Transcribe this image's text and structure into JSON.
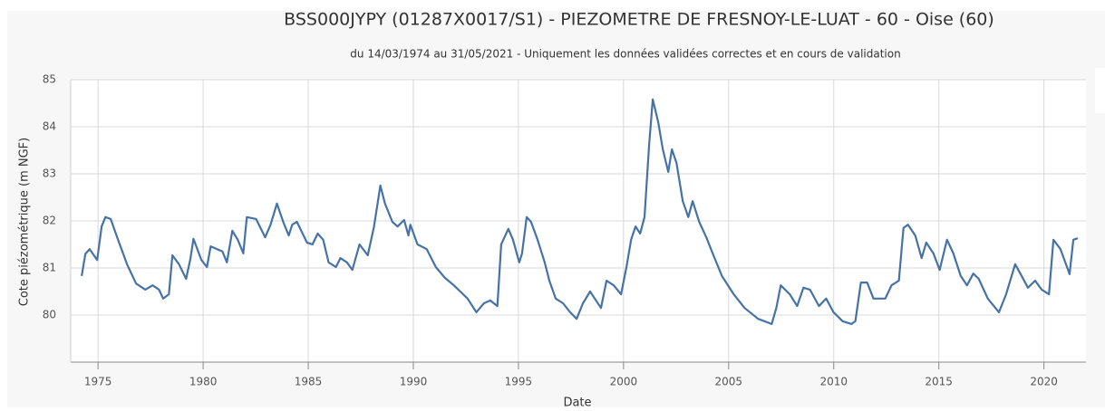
{
  "chart_data": {
    "type": "line",
    "title": "BSS000JYPY (01287X0017/S1) - PIEZOMETRE DE FRESNOY-LE-LUAT - 60 - Oise (60)",
    "subtitle": "du 14/03/1974 au 31/05/2021 - Uniquement les données validées correctes et en cours de validation",
    "xlabel": "Date",
    "ylabel": "Cote piézométrique (m NGF)",
    "xlim": [
      1973.7,
      2022.0
    ],
    "xticks": [
      1975,
      1980,
      1985,
      1990,
      1995,
      2000,
      2005,
      2010,
      2015,
      2020
    ],
    "ylim": [
      79,
      85
    ],
    "yticks": [
      80,
      81,
      82,
      83,
      84,
      85
    ],
    "grid": true,
    "series": [
      {
        "color": "#4572a7",
        "x": [
          1974.22,
          1974.4,
          1974.6,
          1974.96,
          1975.17,
          1975.35,
          1975.6,
          1975.95,
          1976.38,
          1976.81,
          1977.25,
          1977.6,
          1977.9,
          1978.1,
          1978.37,
          1978.54,
          1978.85,
          1979.19,
          1979.4,
          1979.54,
          1979.92,
          1980.18,
          1980.36,
          1980.92,
          1981.13,
          1981.39,
          1981.65,
          1981.91,
          1982.08,
          1982.52,
          1982.95,
          1983.21,
          1983.51,
          1983.81,
          1984.07,
          1984.24,
          1984.46,
          1984.94,
          1985.2,
          1985.45,
          1985.71,
          1985.97,
          1986.32,
          1986.53,
          1986.84,
          1987.1,
          1987.44,
          1987.83,
          1988.13,
          1988.43,
          1988.65,
          1989.0,
          1989.25,
          1989.56,
          1989.77,
          1989.86,
          1990.2,
          1990.64,
          1991.07,
          1991.5,
          1991.93,
          1992.58,
          1993.0,
          1993.36,
          1993.66,
          1994.0,
          1994.18,
          1994.52,
          1994.74,
          1995.04,
          1995.17,
          1995.39,
          1995.6,
          1995.91,
          1996.25,
          1996.47,
          1996.77,
          1997.12,
          1997.46,
          1997.77,
          1998.07,
          1998.41,
          1998.63,
          1998.93,
          1999.19,
          1999.53,
          1999.88,
          2000.14,
          2000.36,
          2000.57,
          2000.79,
          2001.0,
          2001.22,
          2001.39,
          2001.65,
          2001.87,
          2002.13,
          2002.3,
          2002.52,
          2002.82,
          2003.08,
          2003.29,
          2003.6,
          2003.94,
          2004.24,
          2004.68,
          2005.24,
          2005.76,
          2006.4,
          2007.05,
          2007.27,
          2007.48,
          2007.91,
          2008.26,
          2008.56,
          2008.87,
          2009.3,
          2009.64,
          2009.99,
          2010.42,
          2010.85,
          2011.03,
          2011.29,
          2011.59,
          2011.89,
          2012.45,
          2012.75,
          2013.1,
          2013.32,
          2013.53,
          2013.88,
          2014.18,
          2014.4,
          2014.74,
          2015.04,
          2015.39,
          2015.69,
          2016.04,
          2016.34,
          2016.64,
          2016.9,
          2017.33,
          2017.86,
          2018.2,
          2018.63,
          2018.94,
          2019.24,
          2019.58,
          2019.89,
          2020.24,
          2020.45,
          2020.79,
          2021.22,
          2021.4,
          2021.61
        ],
        "values": [
          80.83,
          81.3,
          81.4,
          81.17,
          81.88,
          82.08,
          82.04,
          81.6,
          81.08,
          80.67,
          80.54,
          80.63,
          80.54,
          80.35,
          80.44,
          81.27,
          81.08,
          80.77,
          81.21,
          81.62,
          81.17,
          81.02,
          81.46,
          81.35,
          81.12,
          81.79,
          81.6,
          81.31,
          82.08,
          82.04,
          81.65,
          81.92,
          82.37,
          81.98,
          81.69,
          81.92,
          81.98,
          81.54,
          81.5,
          81.73,
          81.6,
          81.12,
          81.02,
          81.21,
          81.12,
          80.96,
          81.5,
          81.27,
          81.88,
          82.75,
          82.37,
          81.98,
          81.88,
          82.02,
          81.69,
          81.92,
          81.5,
          81.4,
          81.02,
          80.79,
          80.63,
          80.35,
          80.06,
          80.25,
          80.31,
          80.19,
          81.5,
          81.83,
          81.6,
          81.12,
          81.31,
          82.08,
          81.98,
          81.6,
          81.12,
          80.73,
          80.35,
          80.25,
          80.06,
          79.92,
          80.25,
          80.5,
          80.35,
          80.15,
          80.73,
          80.63,
          80.44,
          81.02,
          81.6,
          81.88,
          81.73,
          82.08,
          83.62,
          84.58,
          84.1,
          83.52,
          83.04,
          83.52,
          83.23,
          82.42,
          82.08,
          82.42,
          81.98,
          81.65,
          81.31,
          80.83,
          80.44,
          80.15,
          79.92,
          79.81,
          80.15,
          80.63,
          80.44,
          80.19,
          80.58,
          80.54,
          80.19,
          80.35,
          80.06,
          79.87,
          79.81,
          79.87,
          80.69,
          80.69,
          80.35,
          80.35,
          80.63,
          80.73,
          81.85,
          81.92,
          81.69,
          81.21,
          81.54,
          81.31,
          80.96,
          81.6,
          81.31,
          80.83,
          80.63,
          80.88,
          80.77,
          80.35,
          80.06,
          80.44,
          81.08,
          80.83,
          80.58,
          80.73,
          80.54,
          80.44,
          81.6,
          81.4,
          80.87,
          81.6,
          81.63
        ]
      }
    ]
  }
}
